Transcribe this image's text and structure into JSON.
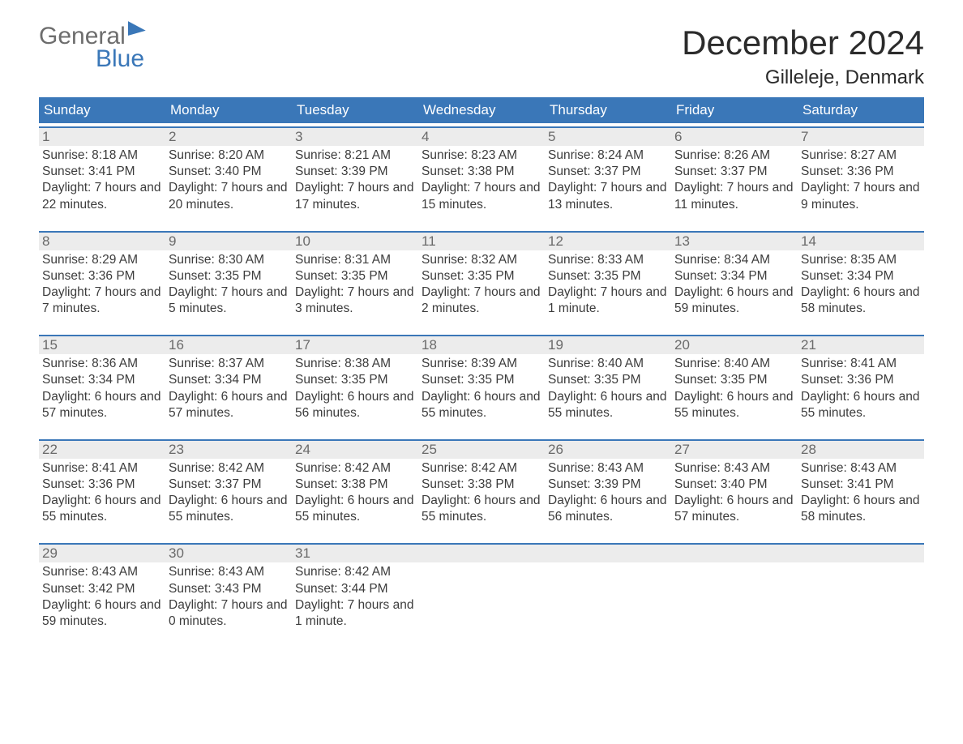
{
  "brand": {
    "word1": "General",
    "word2": "Blue"
  },
  "colors": {
    "accent": "#3a77b8",
    "row_header_bg": "#ececec",
    "row_border": "#3a77b8",
    "text": "#3c3c3c",
    "text_muted": "#6a6a6a",
    "logo_gray": "#6d6d6d",
    "logo_blue": "#3a77b8",
    "background": "#ffffff"
  },
  "title": "December 2024",
  "location": "Gilleleje, Denmark",
  "days_of_week": [
    "Sunday",
    "Monday",
    "Tuesday",
    "Wednesday",
    "Thursday",
    "Friday",
    "Saturday"
  ],
  "weeks": [
    [
      {
        "n": "1",
        "sunrise": "Sunrise: 8:18 AM",
        "sunset": "Sunset: 3:41 PM",
        "daylight": "Daylight: 7 hours and 22 minutes."
      },
      {
        "n": "2",
        "sunrise": "Sunrise: 8:20 AM",
        "sunset": "Sunset: 3:40 PM",
        "daylight": "Daylight: 7 hours and 20 minutes."
      },
      {
        "n": "3",
        "sunrise": "Sunrise: 8:21 AM",
        "sunset": "Sunset: 3:39 PM",
        "daylight": "Daylight: 7 hours and 17 minutes."
      },
      {
        "n": "4",
        "sunrise": "Sunrise: 8:23 AM",
        "sunset": "Sunset: 3:38 PM",
        "daylight": "Daylight: 7 hours and 15 minutes."
      },
      {
        "n": "5",
        "sunrise": "Sunrise: 8:24 AM",
        "sunset": "Sunset: 3:37 PM",
        "daylight": "Daylight: 7 hours and 13 minutes."
      },
      {
        "n": "6",
        "sunrise": "Sunrise: 8:26 AM",
        "sunset": "Sunset: 3:37 PM",
        "daylight": "Daylight: 7 hours and 11 minutes."
      },
      {
        "n": "7",
        "sunrise": "Sunrise: 8:27 AM",
        "sunset": "Sunset: 3:36 PM",
        "daylight": "Daylight: 7 hours and 9 minutes."
      }
    ],
    [
      {
        "n": "8",
        "sunrise": "Sunrise: 8:29 AM",
        "sunset": "Sunset: 3:36 PM",
        "daylight": "Daylight: 7 hours and 7 minutes."
      },
      {
        "n": "9",
        "sunrise": "Sunrise: 8:30 AM",
        "sunset": "Sunset: 3:35 PM",
        "daylight": "Daylight: 7 hours and 5 minutes."
      },
      {
        "n": "10",
        "sunrise": "Sunrise: 8:31 AM",
        "sunset": "Sunset: 3:35 PM",
        "daylight": "Daylight: 7 hours and 3 minutes."
      },
      {
        "n": "11",
        "sunrise": "Sunrise: 8:32 AM",
        "sunset": "Sunset: 3:35 PM",
        "daylight": "Daylight: 7 hours and 2 minutes."
      },
      {
        "n": "12",
        "sunrise": "Sunrise: 8:33 AM",
        "sunset": "Sunset: 3:35 PM",
        "daylight": "Daylight: 7 hours and 1 minute."
      },
      {
        "n": "13",
        "sunrise": "Sunrise: 8:34 AM",
        "sunset": "Sunset: 3:34 PM",
        "daylight": "Daylight: 6 hours and 59 minutes."
      },
      {
        "n": "14",
        "sunrise": "Sunrise: 8:35 AM",
        "sunset": "Sunset: 3:34 PM",
        "daylight": "Daylight: 6 hours and 58 minutes."
      }
    ],
    [
      {
        "n": "15",
        "sunrise": "Sunrise: 8:36 AM",
        "sunset": "Sunset: 3:34 PM",
        "daylight": "Daylight: 6 hours and 57 minutes."
      },
      {
        "n": "16",
        "sunrise": "Sunrise: 8:37 AM",
        "sunset": "Sunset: 3:34 PM",
        "daylight": "Daylight: 6 hours and 57 minutes."
      },
      {
        "n": "17",
        "sunrise": "Sunrise: 8:38 AM",
        "sunset": "Sunset: 3:35 PM",
        "daylight": "Daylight: 6 hours and 56 minutes."
      },
      {
        "n": "18",
        "sunrise": "Sunrise: 8:39 AM",
        "sunset": "Sunset: 3:35 PM",
        "daylight": "Daylight: 6 hours and 55 minutes."
      },
      {
        "n": "19",
        "sunrise": "Sunrise: 8:40 AM",
        "sunset": "Sunset: 3:35 PM",
        "daylight": "Daylight: 6 hours and 55 minutes."
      },
      {
        "n": "20",
        "sunrise": "Sunrise: 8:40 AM",
        "sunset": "Sunset: 3:35 PM",
        "daylight": "Daylight: 6 hours and 55 minutes."
      },
      {
        "n": "21",
        "sunrise": "Sunrise: 8:41 AM",
        "sunset": "Sunset: 3:36 PM",
        "daylight": "Daylight: 6 hours and 55 minutes."
      }
    ],
    [
      {
        "n": "22",
        "sunrise": "Sunrise: 8:41 AM",
        "sunset": "Sunset: 3:36 PM",
        "daylight": "Daylight: 6 hours and 55 minutes."
      },
      {
        "n": "23",
        "sunrise": "Sunrise: 8:42 AM",
        "sunset": "Sunset: 3:37 PM",
        "daylight": "Daylight: 6 hours and 55 minutes."
      },
      {
        "n": "24",
        "sunrise": "Sunrise: 8:42 AM",
        "sunset": "Sunset: 3:38 PM",
        "daylight": "Daylight: 6 hours and 55 minutes."
      },
      {
        "n": "25",
        "sunrise": "Sunrise: 8:42 AM",
        "sunset": "Sunset: 3:38 PM",
        "daylight": "Daylight: 6 hours and 55 minutes."
      },
      {
        "n": "26",
        "sunrise": "Sunrise: 8:43 AM",
        "sunset": "Sunset: 3:39 PM",
        "daylight": "Daylight: 6 hours and 56 minutes."
      },
      {
        "n": "27",
        "sunrise": "Sunrise: 8:43 AM",
        "sunset": "Sunset: 3:40 PM",
        "daylight": "Daylight: 6 hours and 57 minutes."
      },
      {
        "n": "28",
        "sunrise": "Sunrise: 8:43 AM",
        "sunset": "Sunset: 3:41 PM",
        "daylight": "Daylight: 6 hours and 58 minutes."
      }
    ],
    [
      {
        "n": "29",
        "sunrise": "Sunrise: 8:43 AM",
        "sunset": "Sunset: 3:42 PM",
        "daylight": "Daylight: 6 hours and 59 minutes."
      },
      {
        "n": "30",
        "sunrise": "Sunrise: 8:43 AM",
        "sunset": "Sunset: 3:43 PM",
        "daylight": "Daylight: 7 hours and 0 minutes."
      },
      {
        "n": "31",
        "sunrise": "Sunrise: 8:42 AM",
        "sunset": "Sunset: 3:44 PM",
        "daylight": "Daylight: 7 hours and 1 minute."
      },
      {
        "empty": true
      },
      {
        "empty": true
      },
      {
        "empty": true
      },
      {
        "empty": true
      }
    ]
  ]
}
